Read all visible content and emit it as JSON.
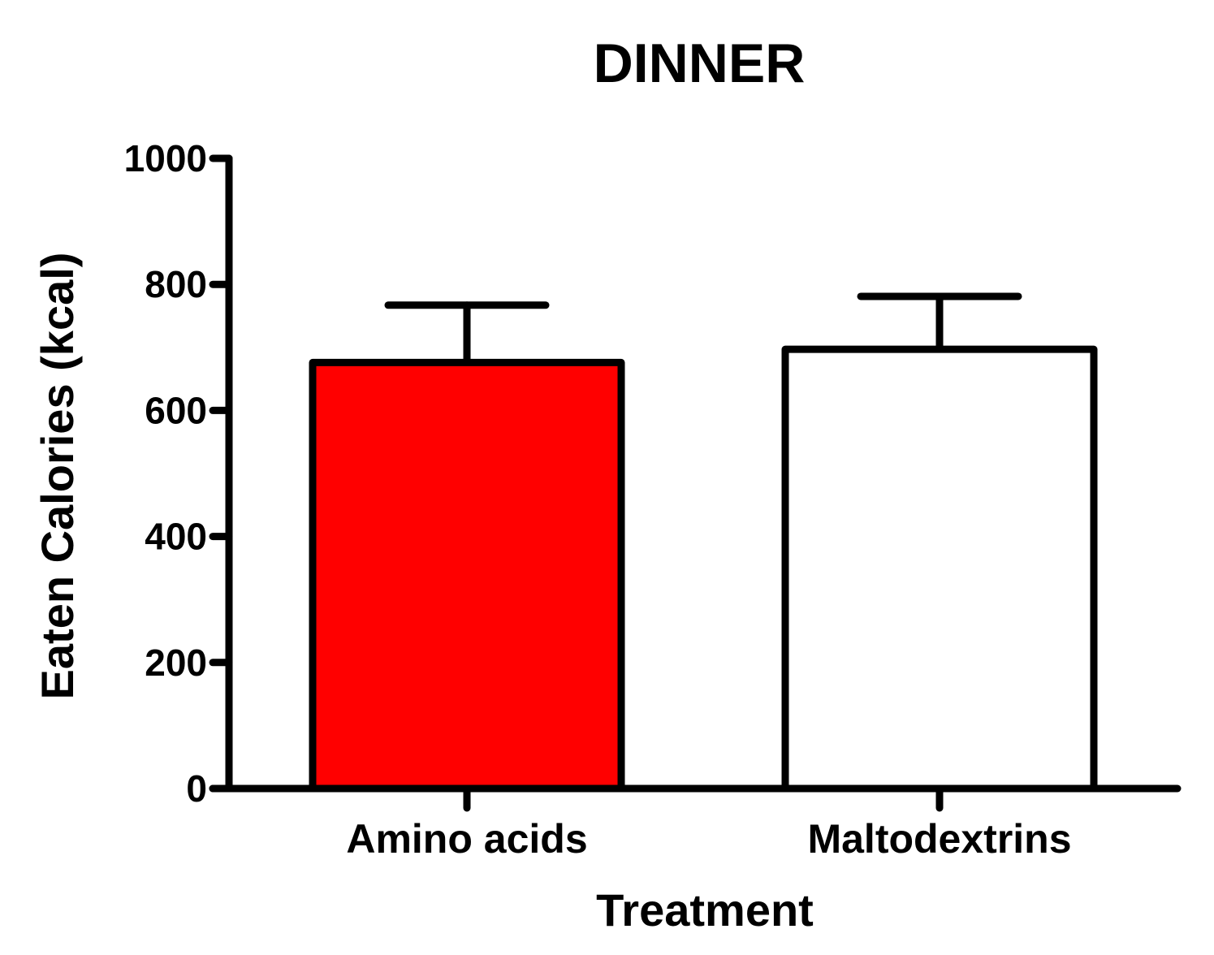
{
  "chart_data": {
    "type": "bar",
    "title": "DINNER",
    "xlabel": "Treatment",
    "ylabel": "Eaten Calories (kcal)",
    "ylim": [
      0,
      1000
    ],
    "yticks": [
      0,
      200,
      400,
      600,
      800,
      1000
    ],
    "grid": false,
    "legend": "none",
    "categories": [
      "Amino acids",
      "Maltodextrins"
    ],
    "values": [
      676,
      697
    ],
    "error_upper": [
      767,
      781
    ],
    "bar_colors": [
      "#ff0000",
      "#ffffff"
    ],
    "edge_color": "#000000"
  }
}
